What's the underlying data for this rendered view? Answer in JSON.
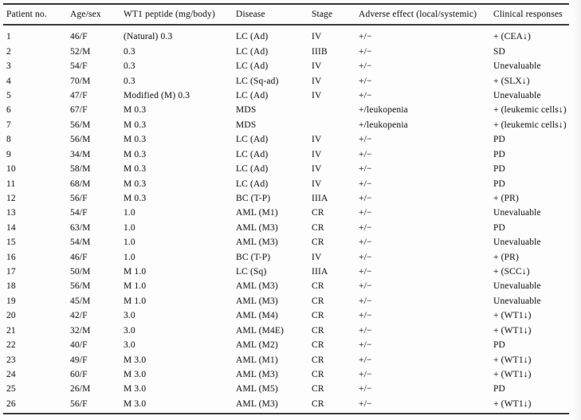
{
  "table": {
    "columns": [
      "Patient no.",
      "Age/sex",
      "WT1 peptide (mg/body)",
      "Disease",
      "Stage",
      "Adverse effect (local/systemic)",
      "Clinical responses"
    ],
    "rows": [
      [
        "1",
        "46/F",
        "(Natural) 0.3",
        "LC (Ad)",
        "IV",
        "+/−",
        "+ (CEA↓)"
      ],
      [
        "2",
        "52/M",
        "0.3",
        "LC (Ad)",
        "IIIB",
        "+/−",
        "SD"
      ],
      [
        "3",
        "54/F",
        "0.3",
        "LC (Ad)",
        "IV",
        "+/−",
        "Unevaluable"
      ],
      [
        "4",
        "70/M",
        "0.3",
        "LC (Sq-ad)",
        "IV",
        "+/−",
        "+ (SLX↓)"
      ],
      [
        "5",
        "47/F",
        "Modified (M) 0.3",
        "LC (Ad)",
        "IV",
        "+/−",
        "Unevaluable"
      ],
      [
        "6",
        "67/F",
        "M 0.3",
        "MDS",
        "",
        "+/leukopenia",
        "+ (leukemic cells↓)"
      ],
      [
        "7",
        "56/M",
        "M 0.3",
        "MDS",
        "",
        "+/leukopenia",
        "+ (leukemic cells↓)"
      ],
      [
        "8",
        "56/M",
        "M 0.3",
        "LC (Ad)",
        "IV",
        "+/−",
        "PD"
      ],
      [
        "9",
        "34/M",
        "M 0.3",
        "LC (Ad)",
        "IV",
        "+/−",
        "PD"
      ],
      [
        "10",
        "58/M",
        "M 0.3",
        "LC (Ad)",
        "IV",
        "+/−",
        "PD"
      ],
      [
        "11",
        "68/M",
        "M 0.3",
        "LC (Ad)",
        "IV",
        "+/−",
        "PD"
      ],
      [
        "12",
        "56/F",
        "M 0.3",
        "BC (T-P)",
        "IIIA",
        "+/−",
        "+ (PR)"
      ],
      [
        "13",
        "54/F",
        "1.0",
        "AML (M1)",
        "CR",
        "+/−",
        "Unevaluable"
      ],
      [
        "14",
        "63/M",
        "1.0",
        "AML (M3)",
        "CR",
        "+/−",
        "PD"
      ],
      [
        "15",
        "54/M",
        "1.0",
        "AML (M3)",
        "CR",
        "+/−",
        "Unevaluable"
      ],
      [
        "16",
        "46/F",
        "1.0",
        "BC (T-P)",
        "IV",
        "+/−",
        "+ (PR)"
      ],
      [
        "17",
        "50/M",
        "M 1.0",
        "LC (Sq)",
        "IIIA",
        "+/−",
        "+ (SCC↓)"
      ],
      [
        "18",
        "56/M",
        "M 1.0",
        "AML (M3)",
        "CR",
        "+/−",
        "Unevaluable"
      ],
      [
        "19",
        "45/M",
        "M 1.0",
        "AML (M3)",
        "CR",
        "+/−",
        "Unevaluable"
      ],
      [
        "20",
        "42/F",
        "3.0",
        "AML (M4)",
        "CR",
        "+/−",
        "+ (WT1↓)"
      ],
      [
        "21",
        "32/M",
        "3.0",
        "AML (M4E)",
        "CR",
        "+/−",
        "+ (WT1↓)"
      ],
      [
        "22",
        "40/F",
        "3.0",
        "AML (M2)",
        "CR",
        "+/−",
        "PD"
      ],
      [
        "23",
        "49/F",
        "M 3.0",
        "AML (M1)",
        "CR",
        "+/−",
        "+ (WT1↓)"
      ],
      [
        "24",
        "60/F",
        "M 3.0",
        "AML (M3)",
        "CR",
        "+/−",
        "+ (WT1↓)"
      ],
      [
        "25",
        "26/M",
        "M 3.0",
        "AML (M5)",
        "CR",
        "+/−",
        "PD"
      ],
      [
        "26",
        "56/F",
        "M 3.0",
        "AML (M3)",
        "CR",
        "+/−",
        "+ (WT1↓)"
      ]
    ]
  }
}
